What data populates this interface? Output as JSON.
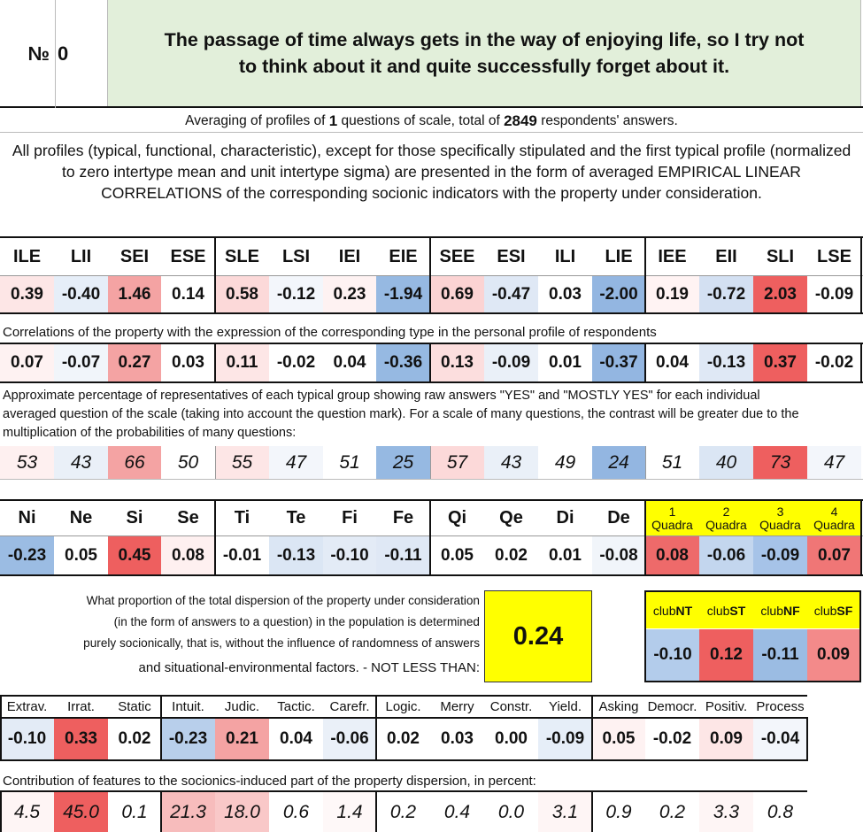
{
  "header": {
    "number_label": "№",
    "number_value": "0",
    "statement": "The passage of time always gets in the way of enjoying life, so I try not to think about it and quite successfully forget about it."
  },
  "averaging": {
    "prefix": "Averaging of profiles of",
    "questions": "1",
    "middle": "questions of scale, total of",
    "respondents": "2849",
    "suffix": "respondents' answers."
  },
  "description": "All profiles (typical, functional, characteristic), except for those specifically stipulated and the first typical profile (normalized to zero intertype mean and unit intertype sigma) are presented in the form of averaged EMPIRICAL LINEAR CORRELATIONS of the corresponding socionic indicators with the property under consideration.",
  "types": {
    "headers": [
      "ILE",
      "LII",
      "SEI",
      "ESE",
      "SLE",
      "LSI",
      "IEI",
      "EIE",
      "SEE",
      "ESI",
      "ILI",
      "LIE",
      "IEE",
      "EII",
      "SLI",
      "LSE"
    ],
    "profile": [
      "0.39",
      "-0.40",
      "1.46",
      "0.14",
      "0.58",
      "-0.12",
      "0.23",
      "-1.94",
      "0.69",
      "-0.47",
      "0.03",
      "-2.00",
      "0.19",
      "-0.72",
      "2.03",
      "-0.09"
    ],
    "profile_colors": [
      "#fde6e6",
      "#e6eef8",
      "#f4a3a3",
      "#ffffff",
      "#fcd9d9",
      "#f3f6fb",
      "#fef2f2",
      "#96b9e2",
      "#fbd3d3",
      "#dfe8f5",
      "#ffffff",
      "#93b6e1",
      "#fff3f3",
      "#d3e0f2",
      "#ee5f5f",
      "#ffffff"
    ],
    "corr_note": "Correlations of the property with the expression of the corresponding type in the personal profile of respondents",
    "correlations": [
      "0.07",
      "-0.07",
      "0.27",
      "0.03",
      "0.11",
      "-0.02",
      "0.04",
      "-0.36",
      "0.13",
      "-0.09",
      "0.01",
      "-0.37",
      "0.04",
      "-0.13",
      "0.37",
      "-0.02"
    ],
    "corr_colors": [
      "#fef2f2",
      "#f1f5fa",
      "#f4a3a3",
      "#ffffff",
      "#fde6e6",
      "#ffffff",
      "#ffffff",
      "#96b9e2",
      "#fcdede",
      "#eaf0f8",
      "#ffffff",
      "#93b6e1",
      "#ffffff",
      "#dfe8f5",
      "#ee5f5f",
      "#ffffff"
    ],
    "pct_note": "Approximate percentage of representatives of each typical group showing raw answers \"YES\" and \"MOSTLY YES\" for each individual averaged question of the scale (taking into account the question mark). For a scale of many questions, the contrast will be greater due to the multiplication of the probabilities of many questions:",
    "percentages": [
      "53",
      "43",
      "66",
      "50",
      "55",
      "47",
      "51",
      "25",
      "57",
      "43",
      "49",
      "24",
      "51",
      "40",
      "73",
      "47"
    ],
    "pct_colors": [
      "#fef0f0",
      "#eaf0f8",
      "#f4a3a3",
      "#ffffff",
      "#fde6e6",
      "#f3f6fb",
      "#ffffff",
      "#96b9e2",
      "#fcd9d9",
      "#eaf0f8",
      "#ffffff",
      "#93b6e1",
      "#ffffff",
      "#dbe6f4",
      "#ee5f5f",
      "#f3f6fb"
    ]
  },
  "functions": {
    "headers": [
      "Ni",
      "Ne",
      "Si",
      "Se",
      "Ti",
      "Te",
      "Fi",
      "Fe",
      "Qi",
      "Qe",
      "Di",
      "De"
    ],
    "values": [
      "-0.23",
      "0.05",
      "0.45",
      "0.08",
      "-0.01",
      "-0.13",
      "-0.10",
      "-0.11",
      "0.05",
      "0.02",
      "0.01",
      "-0.08"
    ],
    "colors": [
      "#9bbce3",
      "#ffffff",
      "#ee5f5f",
      "#fef0f0",
      "#ffffff",
      "#dbe6f4",
      "#e3ebf6",
      "#dfe8f5",
      "#ffffff",
      "#ffffff",
      "#ffffff",
      "#f1f5fa"
    ],
    "quadra_headers": [
      [
        "1",
        "Quadra"
      ],
      [
        "2",
        "Quadra"
      ],
      [
        "3",
        "Quadra"
      ],
      [
        "4",
        "Quadra"
      ]
    ],
    "quadra_values": [
      "0.08",
      "-0.06",
      "-0.09",
      "0.07"
    ],
    "quadra_colors": [
      "#ee6a6a",
      "#c3d6ee",
      "#a6c3e8",
      "#f07676"
    ]
  },
  "dispersion": {
    "text_lines": [
      "What proportion of the total dispersion of the property under consideration",
      "(in the form of answers to a question) in the population is determined",
      "purely socionically, that is, without the influence of randomness of answers",
      "and situational-environmental factors. - NOT LESS THAN:"
    ],
    "value": "0.24"
  },
  "clubs": {
    "headers": [
      [
        "club",
        "NT"
      ],
      [
        "club",
        "ST"
      ],
      [
        "club",
        "NF"
      ],
      [
        "club",
        "SF"
      ]
    ],
    "values": [
      "-0.10",
      "0.12",
      "-0.11",
      "0.09"
    ],
    "colors": [
      "#b3cceb",
      "#ee5f5f",
      "#9bbce3",
      "#f38a8a"
    ]
  },
  "traits": {
    "headers": [
      "Extrav.",
      "Irrat.",
      "Static",
      "Intuit.",
      "Judic.",
      "Tactic.",
      "Carefr.",
      "Logic.",
      "Merry",
      "Constr.",
      "Yield.",
      "Asking",
      "Democr.",
      "Positiv.",
      "Process"
    ],
    "values": [
      "-0.10",
      "0.33",
      "0.02",
      "-0.23",
      "0.21",
      "0.04",
      "-0.06",
      "0.02",
      "0.03",
      "0.00",
      "-0.09",
      "0.05",
      "-0.02",
      "0.09",
      "-0.04"
    ],
    "colors": [
      "#e3ebf6",
      "#ee5f5f",
      "#ffffff",
      "#b8cfeb",
      "#f4a3a3",
      "#ffffff",
      "#eaf0f8",
      "#ffffff",
      "#ffffff",
      "#ffffff",
      "#e6eef8",
      "#fef2f2",
      "#ffffff",
      "#fde6e6",
      "#f3f6fb"
    ],
    "contrib_note": "Contribution of features to the socionics-induced part of the property dispersion, in percent:",
    "contributions": [
      "4.5",
      "45.0",
      "0.1",
      "21.3",
      "18.0",
      "0.6",
      "1.4",
      "0.2",
      "0.4",
      "0.0",
      "3.1",
      "0.9",
      "0.2",
      "3.3",
      "0.8"
    ],
    "contrib_colors": [
      "#fef5f5",
      "#ee5f5f",
      "#ffffff",
      "#f7bcbc",
      "#f9c8c8",
      "#ffffff",
      "#fef8f8",
      "#ffffff",
      "#ffffff",
      "#ffffff",
      "#fef5f5",
      "#ffffff",
      "#ffffff",
      "#fef5f5",
      "#ffffff"
    ]
  }
}
